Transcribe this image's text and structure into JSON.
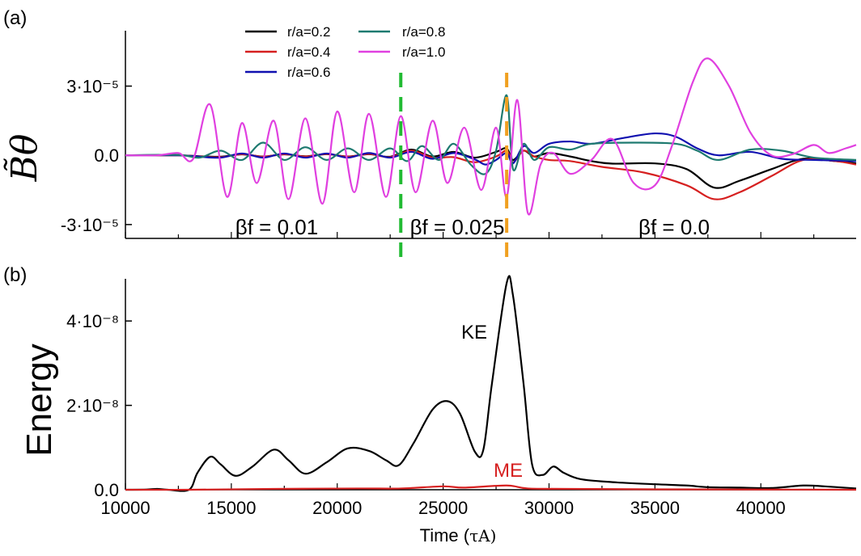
{
  "chart_data": [
    {
      "type": "line",
      "panel_label": "(a)",
      "ylabel": "B̃θ",
      "xlim": [
        10000,
        44500
      ],
      "ylim": [
        -3.6e-05,
        5.4e-05
      ],
      "yticks": [
        {
          "value": 3e-05,
          "label": "3·10⁻⁵"
        },
        {
          "value": 0,
          "label": "0.0"
        },
        {
          "value": -3e-05,
          "label": "-3·10⁻⁵"
        }
      ],
      "legend": {
        "placement": "top-left",
        "entries": [
          {
            "label": "r/a=0.2",
            "color": "#000000"
          },
          {
            "label": "r/a=0.4",
            "color": "#d62020"
          },
          {
            "label": "r/a=0.6",
            "color": "#1010b0"
          },
          {
            "label": "r/a=0.8",
            "color": "#1e7a70"
          },
          {
            "label": "r/a=1.0",
            "color": "#e040e0"
          }
        ]
      },
      "vlines": [
        {
          "x": 23000,
          "color": "#22bb33"
        },
        {
          "x": 28000,
          "color": "#f0a020"
        }
      ],
      "annotations": [
        "βf = 0.01",
        "βf = 0.025",
        "βf = 0.0"
      ],
      "series": [
        {
          "name": "r/a=0.2",
          "color": "#000000",
          "points": [
            [
              10000,
              0
            ],
            [
              12500,
              0
            ],
            [
              13500,
              -4e-07
            ],
            [
              14500,
              -6e-07
            ],
            [
              15500,
              4e-07
            ],
            [
              16500,
              -5e-07
            ],
            [
              17500,
              4e-07
            ],
            [
              18500,
              -4e-07
            ],
            [
              19500,
              5e-07
            ],
            [
              20500,
              -5e-07
            ],
            [
              21500,
              5e-07
            ],
            [
              22500,
              -6e-07
            ],
            [
              23500,
              2.5e-06
            ],
            [
              24500,
              -5e-07
            ],
            [
              25500,
              1.5e-06
            ],
            [
              26500,
              -1e-06
            ],
            [
              27500,
              1.5e-06
            ],
            [
              28000,
              3e-06
            ],
            [
              28300,
              -2e-06
            ],
            [
              28800,
              2e-06
            ],
            [
              29300,
              -5e-07
            ],
            [
              30000,
              1e-06
            ],
            [
              31000,
              -5e-07
            ],
            [
              32000,
              -2.5e-06
            ],
            [
              33000,
              -3.6e-06
            ],
            [
              35000,
              -3.5e-06
            ],
            [
              36500,
              -6e-06
            ],
            [
              37800,
              -1.4e-05
            ],
            [
              39000,
              -1.1e-05
            ],
            [
              40500,
              -6e-06
            ],
            [
              42000,
              -1.5e-06
            ],
            [
              43500,
              -2.5e-06
            ],
            [
              44500,
              -3.5e-06
            ]
          ]
        },
        {
          "name": "r/a=0.4",
          "color": "#d62020",
          "points": [
            [
              10000,
              0
            ],
            [
              12500,
              0
            ],
            [
              13500,
              -5e-07
            ],
            [
              14500,
              -8e-07
            ],
            [
              15500,
              5e-07
            ],
            [
              16500,
              -6e-07
            ],
            [
              17500,
              5e-07
            ],
            [
              18500,
              -5e-07
            ],
            [
              19500,
              6e-07
            ],
            [
              20500,
              -6e-07
            ],
            [
              21500,
              6e-07
            ],
            [
              22500,
              -8e-07
            ],
            [
              23500,
              2e-06
            ],
            [
              24500,
              -1e-06
            ],
            [
              25500,
              -8e-07
            ],
            [
              26500,
              -3e-06
            ],
            [
              27500,
              -5e-07
            ],
            [
              28000,
              2e-06
            ],
            [
              28300,
              -3e-06
            ],
            [
              28800,
              2e-06
            ],
            [
              29300,
              -5e-07
            ],
            [
              30000,
              -2e-06
            ],
            [
              31000,
              -2.5e-06
            ],
            [
              32500,
              -5e-06
            ],
            [
              34500,
              -7.5e-06
            ],
            [
              36500,
              -1.3e-05
            ],
            [
              37800,
              -1.9e-05
            ],
            [
              39000,
              -1.6e-05
            ],
            [
              40500,
              -9e-06
            ],
            [
              42000,
              -2e-06
            ],
            [
              43500,
              -2.5e-06
            ],
            [
              44500,
              -4e-06
            ]
          ]
        },
        {
          "name": "r/a=0.6",
          "color": "#1010b0",
          "points": [
            [
              10000,
              0
            ],
            [
              12500,
              0
            ],
            [
              13500,
              -6e-07
            ],
            [
              14500,
              -1e-06
            ],
            [
              15500,
              8e-07
            ],
            [
              16500,
              -1e-06
            ],
            [
              17500,
              8e-07
            ],
            [
              18500,
              -1e-06
            ],
            [
              19500,
              8e-07
            ],
            [
              20500,
              -1e-06
            ],
            [
              21500,
              1e-06
            ],
            [
              22500,
              -1e-06
            ],
            [
              23500,
              1.5e-06
            ],
            [
              24500,
              -1.5e-06
            ],
            [
              25500,
              1e-06
            ],
            [
              26500,
              -1.8e-06
            ],
            [
              27000,
              -4e-06
            ],
            [
              27500,
              -2e-06
            ],
            [
              28000,
              1e-06
            ],
            [
              28300,
              -3.5e-06
            ],
            [
              28800,
              4e-06
            ],
            [
              29300,
              1e-06
            ],
            [
              30000,
              5e-06
            ],
            [
              31000,
              6e-06
            ],
            [
              32000,
              5e-06
            ],
            [
              33500,
              7.5e-06
            ],
            [
              35000,
              9.5e-06
            ],
            [
              36000,
              8e-06
            ],
            [
              37000,
              3e-06
            ],
            [
              38000,
              0
            ],
            [
              39500,
              1.5e-06
            ],
            [
              41000,
              -1.5e-06
            ],
            [
              42500,
              -2e-06
            ],
            [
              44500,
              -2.5e-06
            ]
          ]
        },
        {
          "name": "r/a=0.8",
          "color": "#1e7a70",
          "points": [
            [
              10000,
              0
            ],
            [
              12500,
              2e-07
            ],
            [
              13500,
              -1e-06
            ],
            [
              14500,
              2e-06
            ],
            [
              15500,
              -2e-06
            ],
            [
              16500,
              5.5e-06
            ],
            [
              17500,
              -2e-06
            ],
            [
              18500,
              3.5e-06
            ],
            [
              19500,
              -2e-06
            ],
            [
              20500,
              3e-06
            ],
            [
              21500,
              -2e-06
            ],
            [
              22500,
              3e-06
            ],
            [
              23300,
              -2.5e-06
            ],
            [
              24000,
              4e-06
            ],
            [
              24800,
              -2e-06
            ],
            [
              25500,
              5e-06
            ],
            [
              26300,
              -4e-06
            ],
            [
              27000,
              -8e-06
            ],
            [
              27500,
              2e-06
            ],
            [
              28000,
              2.6e-05
            ],
            [
              28300,
              -6e-06
            ],
            [
              28800,
              5e-06
            ],
            [
              29300,
              -2e-06
            ],
            [
              30000,
              3.5e-06
            ],
            [
              31000,
              2.5e-06
            ],
            [
              32000,
              5e-06
            ],
            [
              34000,
              5.5e-06
            ],
            [
              36000,
              5e-06
            ],
            [
              37000,
              2e-06
            ],
            [
              38000,
              -2e-06
            ],
            [
              39500,
              2.5e-06
            ],
            [
              41000,
              2e-06
            ],
            [
              42500,
              -1e-06
            ],
            [
              44500,
              -2e-06
            ]
          ]
        },
        {
          "name": "r/a=1.0",
          "color": "#e040e0",
          "points": [
            [
              10000,
              0
            ],
            [
              11500,
              0
            ],
            [
              12500,
              1e-06
            ],
            [
              13200,
              -1.5e-06
            ],
            [
              14000,
              2.2e-05
            ],
            [
              14800,
              -1.8e-05
            ],
            [
              15500,
              1.4e-05
            ],
            [
              16200,
              -1.2e-05
            ],
            [
              17000,
              1.5e-05
            ],
            [
              17700,
              -1.9e-05
            ],
            [
              18500,
              1.6e-05
            ],
            [
              19300,
              -2.1e-05
            ],
            [
              20000,
              1.9e-05
            ],
            [
              20800,
              -1.6e-05
            ],
            [
              21500,
              1.8e-05
            ],
            [
              22300,
              -1.8e-05
            ],
            [
              23000,
              1.7e-05
            ],
            [
              23700,
              -1.6e-05
            ],
            [
              24500,
              1.5e-05
            ],
            [
              25200,
              -1.2e-05
            ],
            [
              26000,
              1.2e-05
            ],
            [
              26800,
              -1.5e-05
            ],
            [
              27500,
              1.2e-05
            ],
            [
              28000,
              -1.8e-05
            ],
            [
              28500,
              2.4e-05
            ],
            [
              29000,
              -2.5e-05
            ],
            [
              29600,
              -4e-06
            ],
            [
              30200,
              1e-06
            ],
            [
              31000,
              -8e-06
            ],
            [
              32000,
              -2e-06
            ],
            [
              33000,
              7e-06
            ],
            [
              34000,
              -1.2e-05
            ],
            [
              35000,
              -1.3e-05
            ],
            [
              35800,
              4e-06
            ],
            [
              36800,
              3.2e-05
            ],
            [
              37500,
              4.2e-05
            ],
            [
              38500,
              3e-05
            ],
            [
              39500,
              1e-05
            ],
            [
              40500,
              0
            ],
            [
              41500,
              5e-07
            ],
            [
              42500,
              4.5e-06
            ],
            [
              43200,
              1e-06
            ],
            [
              44000,
              3e-06
            ],
            [
              44500,
              4.5e-06
            ]
          ]
        }
      ]
    },
    {
      "type": "line",
      "panel_label": "(b)",
      "xlabel": "Time (",
      "xlabel_unit": "τA)",
      "ylabel": "Energy",
      "xlim": [
        10000,
        44500
      ],
      "ylim": [
        0,
        5e-08
      ],
      "xticks": [
        {
          "value": 10000,
          "label": "10000"
        },
        {
          "value": 15000,
          "label": "15000"
        },
        {
          "value": 20000,
          "label": "20000"
        },
        {
          "value": 25000,
          "label": "25000"
        },
        {
          "value": 30000,
          "label": "30000"
        },
        {
          "value": 35000,
          "label": "35000"
        },
        {
          "value": 40000,
          "label": "40000"
        }
      ],
      "yticks": [
        {
          "value": 0,
          "label": "0.0"
        },
        {
          "value": 2e-08,
          "label": "2·10⁻⁸"
        },
        {
          "value": 4e-08,
          "label": "4·10⁻⁸"
        }
      ],
      "annotations": [
        {
          "text": "KE",
          "color": "#000000"
        },
        {
          "text": "ME",
          "color": "#d62020"
        }
      ],
      "series": [
        {
          "name": "KE",
          "color": "#000000",
          "points": [
            [
              10000,
              0
            ],
            [
              11000,
              5e-11
            ],
            [
              11500,
              2e-10
            ],
            [
              12000,
              0
            ],
            [
              13000,
              0
            ],
            [
              13400,
              4e-09
            ],
            [
              14000,
              7.8e-09
            ],
            [
              14500,
              6e-09
            ],
            [
              15200,
              3.3e-09
            ],
            [
              16000,
              5.5e-09
            ],
            [
              17000,
              9.5e-09
            ],
            [
              17700,
              7e-09
            ],
            [
              18500,
              3.8e-09
            ],
            [
              19500,
              6.5e-09
            ],
            [
              20500,
              9.8e-09
            ],
            [
              21500,
              9.2e-09
            ],
            [
              22300,
              7e-09
            ],
            [
              22900,
              5.8e-09
            ],
            [
              23600,
              1.1e-08
            ],
            [
              24500,
              1.9e-08
            ],
            [
              25200,
              2.1e-08
            ],
            [
              25800,
              1.8e-08
            ],
            [
              26500,
              9e-09
            ],
            [
              26900,
              9.5e-09
            ],
            [
              27300,
              2.5e-08
            ],
            [
              28000,
              4.9e-08
            ],
            [
              28300,
              4.6e-08
            ],
            [
              28800,
              2.5e-08
            ],
            [
              29200,
              6e-09
            ],
            [
              29700,
              3.5e-09
            ],
            [
              30200,
              5.5e-09
            ],
            [
              30700,
              4e-09
            ],
            [
              31500,
              2.5e-09
            ],
            [
              33000,
              1.8e-09
            ],
            [
              35000,
              1.3e-09
            ],
            [
              36500,
              1e-09
            ],
            [
              37500,
              6e-10
            ],
            [
              39000,
              5e-10
            ],
            [
              40500,
              4e-10
            ],
            [
              42000,
              1e-09
            ],
            [
              43000,
              8e-10
            ],
            [
              44500,
              3e-10
            ]
          ]
        },
        {
          "name": "ME",
          "color": "#d62020",
          "points": [
            [
              10000,
              0
            ],
            [
              13000,
              0
            ],
            [
              17000,
              2e-10
            ],
            [
              21000,
              3e-10
            ],
            [
              23000,
              3e-10
            ],
            [
              25000,
              8e-10
            ],
            [
              26000,
              5e-10
            ],
            [
              28000,
              1e-09
            ],
            [
              29000,
              3e-10
            ],
            [
              31000,
              2e-10
            ],
            [
              35000,
              1e-10
            ],
            [
              40000,
              5e-11
            ],
            [
              44500,
              0
            ]
          ]
        }
      ]
    }
  ]
}
